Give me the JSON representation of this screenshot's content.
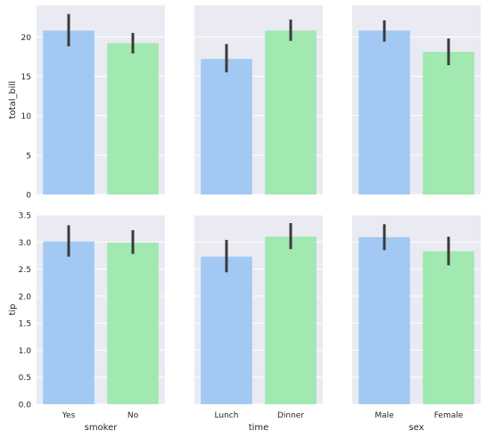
{
  "chart_data": {
    "type": "bar",
    "grid": true,
    "colors": {
      "background": "#eaeaf2",
      "grid": "#ffffff",
      "bar_1": "#a1c9f4",
      "bar_2": "#a1e8b1",
      "error_bar": "#3b3b3b"
    },
    "rows": [
      {
        "ylabel": "total_bill",
        "ylim": [
          0,
          24
        ],
        "yticks": [
          0,
          5,
          10,
          15,
          20
        ]
      },
      {
        "ylabel": "tip",
        "ylim": [
          0,
          3.5
        ],
        "yticks": [
          0.0,
          0.5,
          1.0,
          1.5,
          2.0,
          2.5,
          3.0,
          3.5
        ]
      }
    ],
    "columns": [
      {
        "xlabel": "smoker",
        "categories": [
          "Yes",
          "No"
        ]
      },
      {
        "xlabel": "time",
        "categories": [
          "Lunch",
          "Dinner"
        ]
      },
      {
        "xlabel": "sex",
        "categories": [
          "Male",
          "Female"
        ]
      }
    ],
    "panels": [
      {
        "row": 0,
        "col": 0,
        "values": [
          20.8,
          19.2
        ],
        "ci": [
          [
            18.8,
            22.9
          ],
          [
            17.9,
            20.5
          ]
        ]
      },
      {
        "row": 0,
        "col": 1,
        "values": [
          17.2,
          20.8
        ],
        "ci": [
          [
            15.5,
            19.1
          ],
          [
            19.5,
            22.2
          ]
        ]
      },
      {
        "row": 0,
        "col": 2,
        "values": [
          20.8,
          18.1
        ],
        "ci": [
          [
            19.4,
            22.1
          ],
          [
            16.4,
            19.8
          ]
        ]
      },
      {
        "row": 1,
        "col": 0,
        "values": [
          3.01,
          2.99
        ],
        "ci": [
          [
            2.73,
            3.31
          ],
          [
            2.78,
            3.22
          ]
        ]
      },
      {
        "row": 1,
        "col": 1,
        "values": [
          2.73,
          3.1
        ],
        "ci": [
          [
            2.44,
            3.04
          ],
          [
            2.87,
            3.35
          ]
        ]
      },
      {
        "row": 1,
        "col": 2,
        "values": [
          3.09,
          2.83
        ],
        "ci": [
          [
            2.85,
            3.33
          ],
          [
            2.57,
            3.1
          ]
        ]
      }
    ]
  }
}
